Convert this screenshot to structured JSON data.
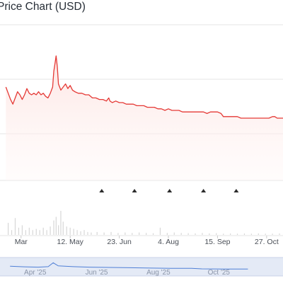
{
  "chart_data": {
    "type": "line",
    "title": "Price Chart (USD)",
    "xlabel": "",
    "ylabel": "",
    "x_ticks": [
      {
        "label": "Mar",
        "date": "2025-03-31"
      },
      {
        "label": "12. May",
        "date": "2025-05-12"
      },
      {
        "label": "23. Jun",
        "date": "2025-06-23"
      },
      {
        "label": "4. Aug",
        "date": "2025-08-04"
      },
      {
        "label": "15. Sep",
        "date": "2025-09-15"
      },
      {
        "label": "27. Oct",
        "date": "2025-10-27"
      }
    ],
    "navigator_ticks": [
      {
        "label": "Apr '25",
        "date": "2025-04-01"
      },
      {
        "label": "Jun '25",
        "date": "2025-06-01"
      },
      {
        "label": "Aug '25",
        "date": "2025-08-01"
      },
      {
        "label": "Oct '25",
        "date": "2025-10-01"
      }
    ],
    "y_range": [
      0,
      1
    ],
    "grid": true,
    "legend": "none",
    "series": [
      {
        "color": "#e53935",
        "points": [
          [
            "2025-03-18",
            0.6
          ],
          [
            "2025-03-20",
            0.56
          ],
          [
            "2025-03-22",
            0.52
          ],
          [
            "2025-03-24",
            0.49
          ],
          [
            "2025-03-26",
            0.53
          ],
          [
            "2025-03-28",
            0.57
          ],
          [
            "2025-03-30",
            0.55
          ],
          [
            "2025-04-01",
            0.52
          ],
          [
            "2025-04-03",
            0.55
          ],
          [
            "2025-04-05",
            0.59
          ],
          [
            "2025-04-07",
            0.56
          ],
          [
            "2025-04-09",
            0.55
          ],
          [
            "2025-04-11",
            0.56
          ],
          [
            "2025-04-13",
            0.55
          ],
          [
            "2025-04-15",
            0.57
          ],
          [
            "2025-04-17",
            0.55
          ],
          [
            "2025-04-19",
            0.56
          ],
          [
            "2025-04-21",
            0.54
          ],
          [
            "2025-04-23",
            0.53
          ],
          [
            "2025-04-25",
            0.56
          ],
          [
            "2025-04-27",
            0.6
          ],
          [
            "2025-04-28",
            0.7
          ],
          [
            "2025-04-29",
            0.75
          ],
          [
            "2025-04-30",
            0.8
          ],
          [
            "2025-05-01",
            0.73
          ],
          [
            "2025-05-02",
            0.62
          ],
          [
            "2025-05-04",
            0.58
          ],
          [
            "2025-05-06",
            0.6
          ],
          [
            "2025-05-08",
            0.62
          ],
          [
            "2025-05-10",
            0.59
          ],
          [
            "2025-05-12",
            0.61
          ],
          [
            "2025-05-14",
            0.58
          ],
          [
            "2025-05-16",
            0.57
          ],
          [
            "2025-05-19",
            0.56
          ],
          [
            "2025-05-22",
            0.56
          ],
          [
            "2025-05-25",
            0.55
          ],
          [
            "2025-05-28",
            0.55
          ],
          [
            "2025-05-31",
            0.53
          ],
          [
            "2025-06-03",
            0.53
          ],
          [
            "2025-06-06",
            0.52
          ],
          [
            "2025-06-09",
            0.52
          ],
          [
            "2025-06-12",
            0.51
          ],
          [
            "2025-06-14",
            0.53
          ],
          [
            "2025-06-15",
            0.51
          ],
          [
            "2025-06-17",
            0.5
          ],
          [
            "2025-06-20",
            0.51
          ],
          [
            "2025-06-23",
            0.5
          ],
          [
            "2025-06-26",
            0.5
          ],
          [
            "2025-06-29",
            0.49
          ],
          [
            "2025-07-02",
            0.49
          ],
          [
            "2025-07-05",
            0.49
          ],
          [
            "2025-07-08",
            0.48
          ],
          [
            "2025-07-11",
            0.48
          ],
          [
            "2025-07-14",
            0.48
          ],
          [
            "2025-07-17",
            0.47
          ],
          [
            "2025-07-20",
            0.47
          ],
          [
            "2025-07-23",
            0.47
          ],
          [
            "2025-07-26",
            0.46
          ],
          [
            "2025-07-29",
            0.46
          ],
          [
            "2025-08-01",
            0.45
          ],
          [
            "2025-08-04",
            0.46
          ],
          [
            "2025-08-07",
            0.45
          ],
          [
            "2025-08-10",
            0.45
          ],
          [
            "2025-08-13",
            0.45
          ],
          [
            "2025-08-16",
            0.44
          ],
          [
            "2025-08-19",
            0.44
          ],
          [
            "2025-08-22",
            0.44
          ],
          [
            "2025-08-25",
            0.44
          ],
          [
            "2025-08-28",
            0.44
          ],
          [
            "2025-08-31",
            0.44
          ],
          [
            "2025-09-03",
            0.44
          ],
          [
            "2025-09-06",
            0.43
          ],
          [
            "2025-09-09",
            0.44
          ],
          [
            "2025-09-12",
            0.44
          ],
          [
            "2025-09-15",
            0.44
          ],
          [
            "2025-09-18",
            0.43
          ],
          [
            "2025-09-20",
            0.41
          ],
          [
            "2025-09-23",
            0.41
          ],
          [
            "2025-09-26",
            0.41
          ],
          [
            "2025-09-29",
            0.41
          ],
          [
            "2025-10-02",
            0.41
          ],
          [
            "2025-10-05",
            0.4
          ],
          [
            "2025-10-08",
            0.4
          ],
          [
            "2025-10-11",
            0.4
          ],
          [
            "2025-10-14",
            0.4
          ],
          [
            "2025-10-17",
            0.4
          ],
          [
            "2025-10-20",
            0.4
          ],
          [
            "2025-10-23",
            0.4
          ],
          [
            "2025-10-26",
            0.4
          ],
          [
            "2025-10-29",
            0.4
          ],
          [
            "2025-11-01",
            0.41
          ],
          [
            "2025-11-03",
            0.41
          ],
          [
            "2025-11-05",
            0.4
          ],
          [
            "2025-11-08",
            0.4
          ],
          [
            "2025-11-10",
            0.4
          ]
        ]
      }
    ],
    "markers": [
      "2025-06-08",
      "2025-07-06",
      "2025-08-05",
      "2025-09-03",
      "2025-10-01"
    ],
    "volume": [
      [
        "2025-03-20",
        0.5
      ],
      [
        "2025-03-23",
        0.2
      ],
      [
        "2025-03-26",
        0.7
      ],
      [
        "2025-03-29",
        0.3
      ],
      [
        "2025-04-01",
        0.4
      ],
      [
        "2025-04-04",
        0.2
      ],
      [
        "2025-04-07",
        0.3
      ],
      [
        "2025-04-10",
        0.2
      ],
      [
        "2025-04-13",
        0.25
      ],
      [
        "2025-04-16",
        0.2
      ],
      [
        "2025-04-19",
        0.3
      ],
      [
        "2025-04-22",
        0.2
      ],
      [
        "2025-04-25",
        0.35
      ],
      [
        "2025-04-28",
        0.6
      ],
      [
        "2025-04-30",
        0.75
      ],
      [
        "2025-05-02",
        0.4
      ],
      [
        "2025-05-04",
        1.0
      ],
      [
        "2025-05-06",
        0.55
      ],
      [
        "2025-05-09",
        0.35
      ],
      [
        "2025-05-12",
        0.3
      ],
      [
        "2025-05-15",
        0.25
      ],
      [
        "2025-05-18",
        0.2
      ],
      [
        "2025-05-21",
        0.15
      ],
      [
        "2025-05-24",
        0.2
      ],
      [
        "2025-05-27",
        0.12
      ],
      [
        "2025-05-30",
        0.1
      ],
      [
        "2025-06-04",
        0.12
      ],
      [
        "2025-06-10",
        0.1
      ],
      [
        "2025-06-16",
        0.12
      ],
      [
        "2025-06-22",
        0.08
      ],
      [
        "2025-06-28",
        0.1
      ],
      [
        "2025-07-04",
        0.08
      ],
      [
        "2025-07-10",
        0.1
      ],
      [
        "2025-07-16",
        0.08
      ],
      [
        "2025-07-22",
        0.07
      ],
      [
        "2025-07-28",
        0.3
      ],
      [
        "2025-08-03",
        0.08
      ],
      [
        "2025-08-09",
        0.1
      ],
      [
        "2025-08-15",
        0.08
      ],
      [
        "2025-08-21",
        0.07
      ],
      [
        "2025-08-27",
        0.06
      ],
      [
        "2025-09-02",
        0.08
      ],
      [
        "2025-09-08",
        0.06
      ],
      [
        "2025-09-14",
        0.07
      ],
      [
        "2025-09-20",
        0.05
      ],
      [
        "2025-09-26",
        0.06
      ],
      [
        "2025-10-02",
        0.05
      ],
      [
        "2025-10-08",
        0.06
      ],
      [
        "2025-10-14",
        0.05
      ],
      [
        "2025-10-20",
        0.06
      ],
      [
        "2025-10-26",
        0.05
      ],
      [
        "2025-11-01",
        0.05
      ],
      [
        "2025-11-07",
        0.06
      ]
    ],
    "navigator_series": [
      [
        "2025-03-18",
        0.58
      ],
      [
        "2025-04-01",
        0.54
      ],
      [
        "2025-04-15",
        0.52
      ],
      [
        "2025-04-25",
        0.55
      ],
      [
        "2025-04-30",
        0.8
      ],
      [
        "2025-05-05",
        0.6
      ],
      [
        "2025-05-20",
        0.55
      ],
      [
        "2025-06-05",
        0.52
      ],
      [
        "2025-06-25",
        0.5
      ],
      [
        "2025-07-15",
        0.48
      ],
      [
        "2025-08-05",
        0.46
      ],
      [
        "2025-08-25",
        0.44
      ],
      [
        "2025-09-15",
        0.44
      ],
      [
        "2025-09-25",
        0.41
      ],
      [
        "2025-10-15",
        0.4
      ],
      [
        "2025-11-10",
        0.4
      ]
    ]
  },
  "colors": {
    "line": "#e53935",
    "area_top": "#fde8e6",
    "grid": "#e6e6e6",
    "volume": "#d7d7d7",
    "marker": "#2b2b2b",
    "navigator_bg": "#e4eaf6",
    "navigator_line": "#4f7fd6"
  }
}
